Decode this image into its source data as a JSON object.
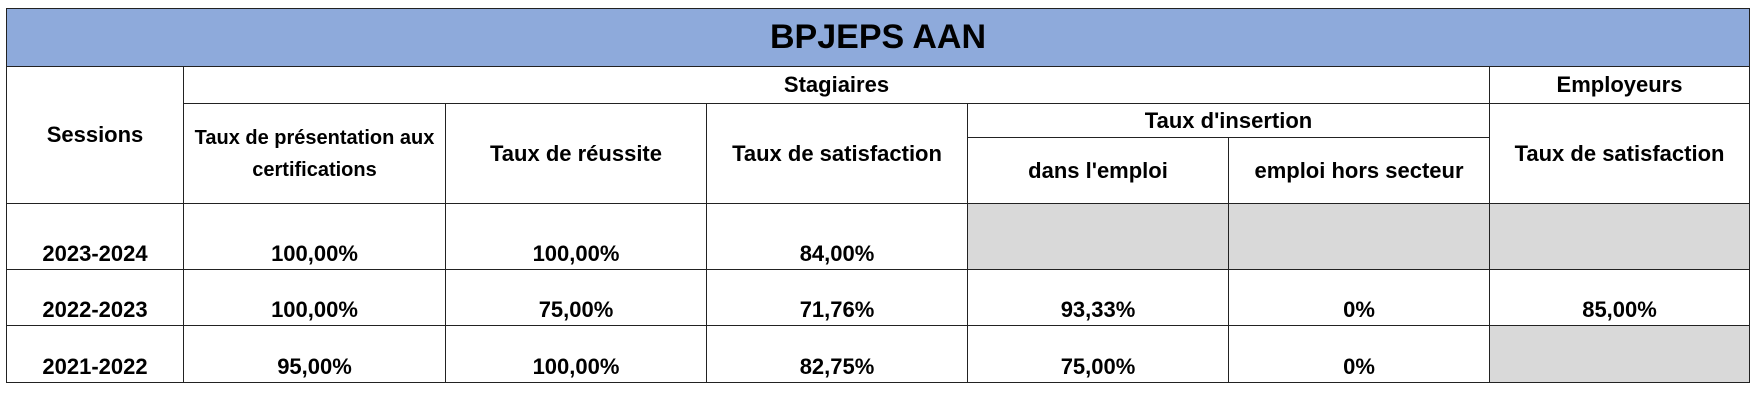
{
  "title": "BPJEPS AAN",
  "header": {
    "sessions": "Sessions",
    "stagiaires": "Stagiaires",
    "employeurs": "Employeurs",
    "insertion": "Taux d'insertion",
    "columns": [
      "Taux de présentation aux certifications",
      "Taux de réussite",
      "Taux de satisfaction"
    ],
    "insertion_columns": [
      "dans l'emploi",
      "emploi hors secteur"
    ],
    "employer_column": "Taux de satisfaction"
  },
  "rows": [
    [
      "2023-2024",
      "100,00%",
      "100,00%",
      "84,00%",
      null,
      null,
      null
    ],
    [
      "2022-2023",
      "100,00%",
      "75,00%",
      "71,76%",
      "93,33%",
      "0%",
      "85,00%"
    ],
    [
      "2021-2022",
      "95,00%",
      "100,00%",
      "82,75%",
      "75,00%",
      "0%",
      null
    ]
  ]
}
